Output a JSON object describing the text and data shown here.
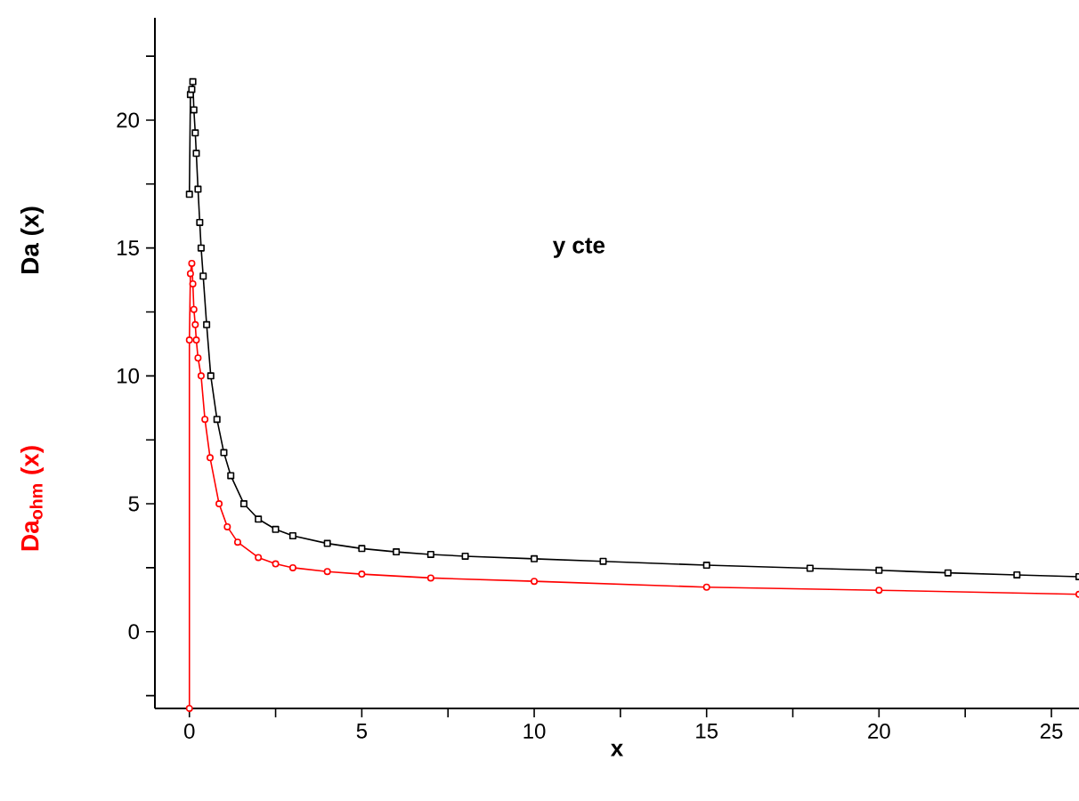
{
  "chart_data": {
    "type": "line",
    "xlabel": "x",
    "ylabel": "Da (x)",
    "annotations": [
      "y cte",
      "Da$_{ohm}$ (x)"
    ],
    "xlim": [
      -1,
      25.8
    ],
    "ylim": [
      -3,
      24
    ],
    "xticks": [
      0,
      {
        "value": 2.5,
        "label": null
      },
      5,
      {
        "value": 7.5,
        "label": null
      },
      10,
      {
        "value": 12.5,
        "label": null
      },
      15,
      {
        "value": 17.5,
        "label": null
      },
      20,
      {
        "value": 22.5,
        "label": null
      },
      25
    ],
    "yticks": [
      {
        "value": -2.5,
        "label": null
      },
      0,
      {
        "value": 2.5,
        "label": null
      },
      5,
      {
        "value": 7.5,
        "label": null
      },
      10,
      {
        "value": 12.5,
        "label": null
      },
      15,
      {
        "value": 17.5,
        "label": null
      },
      20,
      {
        "value": 22.5,
        "label": null
      }
    ],
    "series": [
      {
        "color": "#000000",
        "marker": "square",
        "x": [
          0,
          0.03,
          0.07,
          0.1,
          0.13,
          0.17,
          0.2,
          0.25,
          0.3,
          0.34,
          0.4,
          0.5,
          0.62,
          0.8,
          1.0,
          1.2,
          1.58,
          2,
          2.5,
          3,
          4,
          5,
          6,
          7,
          8,
          10,
          12,
          15,
          18,
          20,
          22,
          24,
          25.8
        ],
        "values": [
          17.1,
          21,
          21.2,
          21.5,
          20.4,
          19.5,
          18.7,
          17.3,
          16,
          15,
          13.9,
          12,
          10,
          8.3,
          7,
          6.1,
          5,
          4.4,
          4.0,
          3.75,
          3.45,
          3.25,
          3.12,
          3.02,
          2.95,
          2.85,
          2.75,
          2.6,
          2.48,
          2.4,
          2.3,
          2.22,
          2.15
        ]
      },
      {
        "color": "#ff0000",
        "marker": "circle",
        "x": [
          0,
          0,
          0.03,
          0.07,
          0.1,
          0.13,
          0.17,
          0.2,
          0.25,
          0.34,
          0.45,
          0.6,
          0.86,
          1.1,
          1.4,
          2,
          2.5,
          3,
          4,
          5,
          7,
          10,
          15,
          20,
          25.8
        ],
        "values": [
          -3,
          11.4,
          14.0,
          14.4,
          13.6,
          12.6,
          12.0,
          11.4,
          10.7,
          10,
          8.3,
          6.8,
          5,
          4.1,
          3.5,
          2.9,
          2.65,
          2.5,
          2.35,
          2.25,
          2.1,
          1.97,
          1.74,
          1.62,
          1.46
        ]
      }
    ]
  }
}
